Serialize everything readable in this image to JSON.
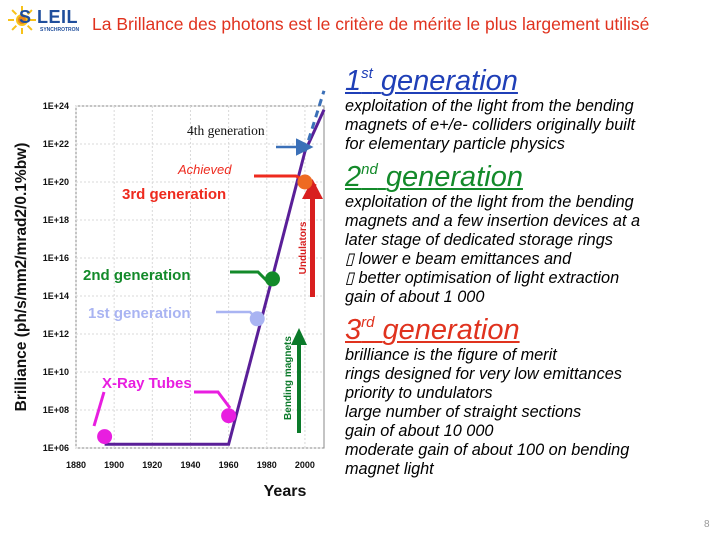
{
  "logo": {
    "text": "S LEIL",
    "subtext": "SYNCHROTRON"
  },
  "title": "La Brillance des photons est le critère de mérite le plus largement utilisé",
  "chart_data": {
    "type": "line",
    "ylabel": "Brilliance (ph/s/mm2/mrad2/0.1%bw)",
    "xlabel": "Years",
    "x_ticks": [
      "1880",
      "1900",
      "1920",
      "1940",
      "1960",
      "1980",
      "2000"
    ],
    "y_ticks": [
      "1E+06",
      "1E+08",
      "1E+10",
      "1E+12",
      "1E+14",
      "1E+16",
      "1E+18",
      "1E+20",
      "1E+22",
      "1E+24"
    ],
    "xlim": [
      1880,
      2010
    ],
    "ylim": [
      6,
      24
    ],
    "series_line": [
      {
        "x": 1895,
        "y": 6.2
      },
      {
        "x": 1960,
        "y": 6.2
      },
      {
        "x": 1983,
        "y": 15.0
      },
      {
        "x": 2000,
        "y": 21.6
      },
      {
        "x": 2010,
        "y": 23.8
      }
    ],
    "points": [
      {
        "x": 1895,
        "y": 6.6,
        "color": "#e81ee0",
        "label": "X-Ray Tubes"
      },
      {
        "x": 1960,
        "y": 7.7,
        "color": "#e81ee0",
        "label": "X-Ray Tubes"
      },
      {
        "x": 1975,
        "y": 12.8,
        "color": "#a9b4f2",
        "label": "1st generation"
      },
      {
        "x": 1983,
        "y": 14.9,
        "color": "#138a2a",
        "label": "2nd generation"
      },
      {
        "x": 2000,
        "y": 20.0,
        "color": "#ee6a22",
        "label": "3rd generation"
      }
    ],
    "annotations": {
      "achieved": "Achieved",
      "third": "3rd generation",
      "second": "2nd generation",
      "first": "1st generation",
      "xray": "X-Ray Tubes",
      "fourth": "4th generation",
      "undulators": "Undulators",
      "bending": "Bending magnets"
    },
    "colors": {
      "line": "#5a1f98",
      "third": "#ee2a1e",
      "second": "#138a2a",
      "first": "#a9b4f2",
      "xray": "#e81ee0",
      "fourth": "#3b70b8",
      "undulator_arrow": "#d81f1f",
      "bending_arrow": "#0b7a2a"
    },
    "grid": true
  },
  "generations": [
    {
      "num": "1",
      "sup": "st",
      "word": "generation",
      "color": "#1f3fb7",
      "lines": [
        "exploitation of the light from the bending",
        "magnets of e+/e- colliders originally built",
        "for elementary particle physics"
      ]
    },
    {
      "num": "2",
      "sup": "nd",
      "word": "generation",
      "color": "#138a2a",
      "lines": [
        "exploitation of the light from the bending",
        "magnets and a few insertion devices at a",
        "later stage of dedicated storage rings",
        "\u0000 lower e beam emittances and",
        "\u0000 better optimisation of light extraction",
        "gain of about 1 000"
      ]
    },
    {
      "num": "3",
      "sup": "rd",
      "word": "generation",
      "color": "#e0321e",
      "lines": [
        "brilliance is the figure of merit",
        "rings designed for very low emittances",
        "priority to undulators",
        "large number of straight sections",
        "gain of about 10 000",
        "moderate gain of about 100 on bending",
        "magnet light"
      ]
    }
  ],
  "page_number": "8"
}
